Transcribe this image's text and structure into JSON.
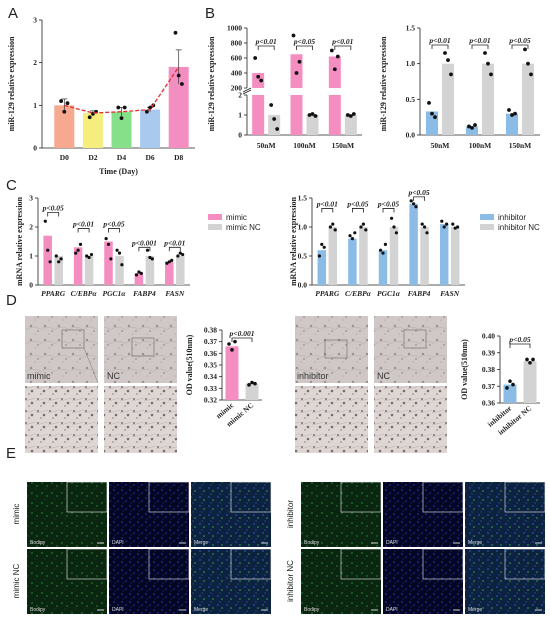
{
  "panels": {
    "A": "A",
    "B": "B",
    "C": "C",
    "D": "D",
    "E": "E"
  },
  "colors": {
    "pink": "#f48ec0",
    "grey": "#d3d3d3",
    "blue": "#8bbce6",
    "salmon": "#f6a98f",
    "yellow": "#f5ee7e",
    "green": "#86e08a",
    "lblue": "#a9c9ef",
    "trend": "#e0302c",
    "dot": "#111111"
  },
  "chart_data": [
    {
      "id": "A",
      "type": "bar",
      "title": "",
      "xlabel": "Time (Day)",
      "ylabel": "miR-129 relative expression",
      "categories": [
        "D0",
        "D2",
        "D4",
        "D6",
        "D8"
      ],
      "values": [
        1.0,
        0.82,
        0.85,
        0.9,
        1.9
      ],
      "errors": [
        0.15,
        0.05,
        0.1,
        0.05,
        0.4
      ],
      "points": [
        [
          1.1,
          0.85,
          1.05
        ],
        [
          0.72,
          0.8,
          0.85
        ],
        [
          0.95,
          0.7,
          0.95
        ],
        [
          0.85,
          0.95,
          1.0
        ],
        [
          2.7,
          1.7,
          1.5
        ]
      ],
      "bar_colors": [
        "#f6a98f",
        "#f5ee7e",
        "#86e08a",
        "#a9c9ef",
        "#f48ec0"
      ],
      "trend_line": true,
      "ylim": [
        0,
        3
      ],
      "yticks": [
        "0",
        "1",
        "2",
        "3"
      ]
    },
    {
      "id": "B1",
      "type": "bar",
      "ylabel": "miR-129 relative expression",
      "categories": [
        "50nM",
        "100nM",
        "150nM"
      ],
      "series": [
        {
          "name": "",
          "values": [
            400,
            650,
            620
          ],
          "points": [
            [
              600,
              350,
              300
            ],
            [
              900,
              400,
              550
            ],
            [
              700,
              450,
              620
            ]
          ]
        },
        {
          "name": "",
          "values": [
            1.0,
            1.0,
            1.0
          ],
          "points": [
            [
              1.5,
              0.8,
              0.3
            ],
            [
              1.0,
              1.05,
              0.95
            ],
            [
              1.0,
              0.95,
              1.05
            ]
          ]
        }
      ],
      "axis_break": true,
      "yticks_lower": [
        "0",
        "1",
        "2"
      ],
      "yticks_upper": [
        "200",
        "400",
        "600",
        "800",
        "1000"
      ],
      "annotations": [
        "p<0.01",
        "p<0.05",
        "p<0.01"
      ]
    },
    {
      "id": "B2",
      "type": "bar",
      "ylabel": "miR-129 relative expression",
      "categories": [
        "50nM",
        "100nM",
        "150nM"
      ],
      "series": [
        {
          "name": "",
          "values": [
            0.33,
            0.12,
            0.3
          ],
          "points": [
            [
              0.45,
              0.3,
              0.25
            ],
            [
              0.12,
              0.1,
              0.14
            ],
            [
              0.35,
              0.28,
              0.3
            ]
          ]
        },
        {
          "name": "",
          "values": [
            1.0,
            1.0,
            1.0
          ],
          "points": [
            [
              1.15,
              1.05,
              0.85
            ],
            [
              1.15,
              1.0,
              0.85
            ],
            [
              1.2,
              1.0,
              0.85
            ]
          ]
        }
      ],
      "ylim": [
        0,
        1.5
      ],
      "yticks": [
        "0.0",
        "0.5",
        "1.0",
        "1.5"
      ],
      "annotations": [
        "p<0.01",
        "p<0.01",
        "p<0.05"
      ]
    },
    {
      "id": "C1",
      "type": "bar",
      "ylabel": "mRNA relative expression",
      "categories": [
        "PPARG",
        "C/EBPα",
        "PGC1α",
        "FABP4",
        "FASN"
      ],
      "series": [
        {
          "name": "mimic",
          "values": [
            1.7,
            1.3,
            1.5,
            0.4,
            0.8
          ],
          "points": [
            [
              2.2,
              1.2,
              0.8
            ],
            [
              1.1,
              1.2,
              1.4
            ],
            [
              1.6,
              1.4,
              0.9
            ],
            [
              0.35,
              0.45,
              0.4
            ],
            [
              0.75,
              0.8,
              0.85
            ]
          ]
        },
        {
          "name": "mimic NC",
          "values": [
            1.0,
            1.0,
            1.0,
            1.0,
            1.0
          ],
          "points": [
            [
              1.0,
              0.8,
              0.9
            ],
            [
              1.0,
              0.95,
              1.05
            ],
            [
              1.2,
              1.1,
              0.7
            ],
            [
              1.2,
              0.95,
              0.9
            ],
            [
              1.0,
              1.1,
              1.05
            ]
          ]
        }
      ],
      "ylim": [
        0,
        3
      ],
      "yticks": [
        "0",
        "1",
        "2",
        "3"
      ],
      "annotations": [
        "p<0.05",
        "p<0.01",
        "p<0.05",
        "p<0.001",
        "p<0.01"
      ]
    },
    {
      "id": "C2",
      "type": "bar",
      "ylabel": "mRNA relative expression",
      "categories": [
        "PPARG",
        "C/EBPα",
        "PGC1α",
        "FABP4",
        "FASN"
      ],
      "series": [
        {
          "name": "inhibitor",
          "values": [
            0.6,
            0.8,
            0.6,
            1.4,
            1.05
          ],
          "points": [
            [
              0.5,
              0.7,
              0.65
            ],
            [
              0.85,
              0.8,
              0.9
            ],
            [
              0.6,
              0.55,
              0.7
            ],
            [
              1.45,
              1.4,
              1.35
            ],
            [
              1.1,
              1.0,
              1.05
            ]
          ]
        },
        {
          "name": "inhibitor NC",
          "values": [
            1.0,
            1.0,
            1.0,
            1.0,
            1.0
          ],
          "points": [
            [
              1.0,
              1.05,
              0.95
            ],
            [
              1.0,
              1.05,
              0.95
            ],
            [
              1.15,
              1.0,
              0.9
            ],
            [
              1.05,
              1.0,
              0.9
            ],
            [
              1.05,
              0.98,
              1.0
            ]
          ]
        }
      ],
      "ylim": [
        0,
        1.5
      ],
      "yticks": [
        "0.0",
        "0.5",
        "1.0",
        "1.5"
      ],
      "annotations": [
        "p<0.01",
        "p<0.05",
        "p<0.05",
        "p<0.05",
        ""
      ]
    },
    {
      "id": "D1",
      "type": "bar",
      "ylabel": "OD value(510nm)",
      "categories": [
        "mimic",
        "mimic NC"
      ],
      "values": [
        0.366,
        0.334
      ],
      "points": [
        [
          0.368,
          0.363,
          0.37
        ],
        [
          0.333,
          0.335,
          0.334
        ]
      ],
      "ylim": [
        0.32,
        0.38
      ],
      "yticks": [
        "0.32",
        "0.33",
        "0.34",
        "0.35",
        "0.36",
        "0.37",
        "0.38"
      ],
      "annotations": [
        "p<0.001"
      ]
    },
    {
      "id": "D2",
      "type": "bar",
      "ylabel": "OD value(510nm)",
      "categories": [
        "inhibitor",
        "inhibitor NC"
      ],
      "values": [
        0.371,
        0.385
      ],
      "points": [
        [
          0.369,
          0.373,
          0.371
        ],
        [
          0.386,
          0.384,
          0.386
        ]
      ],
      "ylim": [
        0.36,
        0.4
      ],
      "yticks": [
        "0.36",
        "0.37",
        "0.38",
        "0.39",
        "0.40"
      ],
      "annotations": [
        "p<0.05"
      ]
    }
  ],
  "images": {
    "d_left_labels": [
      "mimic",
      "NC"
    ],
    "d_right_labels": [
      "inhibitor",
      "NC"
    ],
    "e_left_rows": [
      "mimic",
      "mimic NC"
    ],
    "e_right_rows": [
      "inhibitor",
      "inhibitor NC"
    ],
    "e_channels": [
      "Bodipy",
      "DAPI",
      "Merge"
    ]
  }
}
